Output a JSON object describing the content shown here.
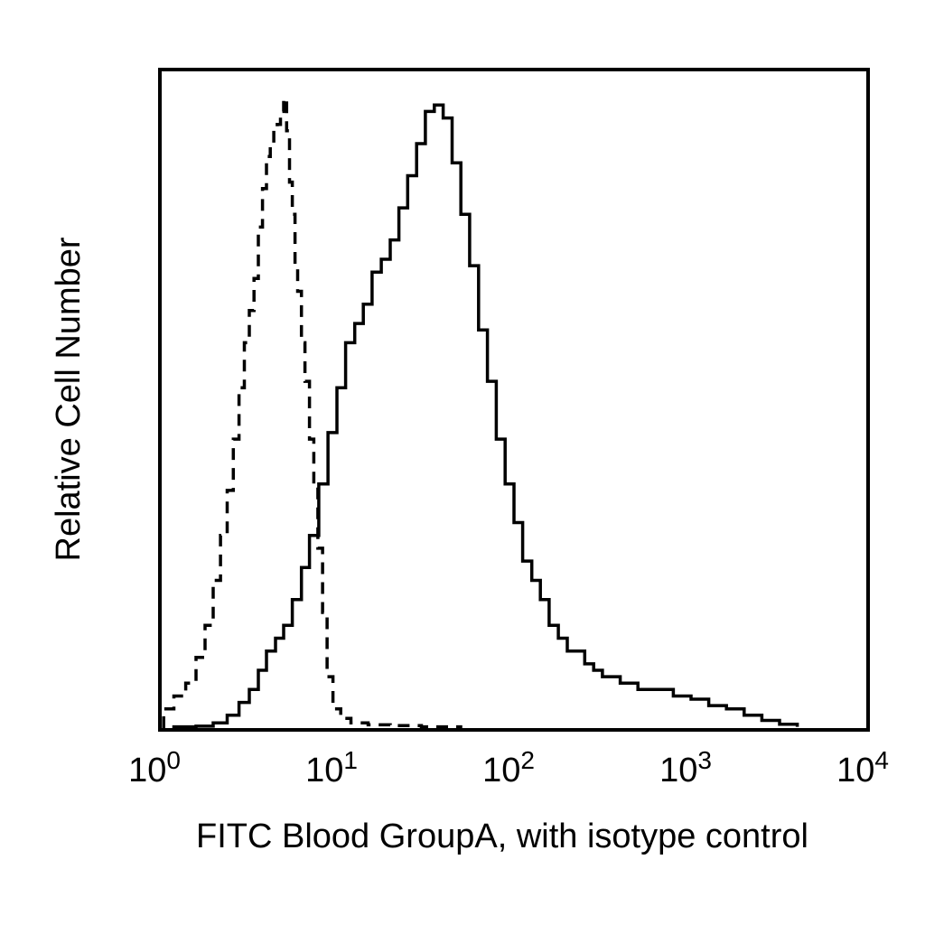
{
  "chart_data": {
    "type": "line",
    "xlabel": "FITC Blood GroupA, with isotype control",
    "ylabel": "Relative Cell Number",
    "x_scale": "log",
    "xlim": [
      1,
      10000
    ],
    "ylim": [
      0,
      100
    ],
    "grid": false,
    "legend": "none",
    "x_ticks": [
      {
        "value": 1,
        "base": "10",
        "exp": "0"
      },
      {
        "value": 10,
        "base": "10",
        "exp": "1"
      },
      {
        "value": 100,
        "base": "10",
        "exp": "2"
      },
      {
        "value": 1000,
        "base": "10",
        "exp": "3"
      },
      {
        "value": 10000,
        "base": "10",
        "exp": "4"
      }
    ],
    "series": [
      {
        "style": "dashed",
        "color": "#000000",
        "x": [
          1.05,
          1.2,
          1.4,
          1.6,
          1.8,
          2.0,
          2.2,
          2.4,
          2.6,
          2.8,
          3.0,
          3.2,
          3.4,
          3.6,
          3.8,
          4.0,
          4.2,
          4.4,
          4.6,
          4.8,
          5.0,
          5.2,
          5.4,
          5.6,
          5.8,
          6.0,
          6.3,
          6.6,
          7.0,
          7.4,
          7.8,
          8.3,
          8.8,
          9.5,
          10.5,
          12.0,
          15.0,
          20.0,
          30.0,
          50.0
        ],
        "y": [
          3,
          5,
          7,
          11,
          16,
          23,
          30,
          37,
          45,
          53,
          60,
          65,
          70,
          78,
          84,
          89,
          91,
          93,
          94,
          96,
          98,
          93,
          85,
          80,
          72,
          68,
          60,
          54,
          45,
          38,
          28,
          18,
          8,
          3,
          1.5,
          0.8,
          0.5,
          0.4,
          0.2,
          0
        ]
      },
      {
        "style": "solid",
        "color": "#000000",
        "x": [
          1.2,
          1.6,
          2.0,
          2.4,
          2.8,
          3.2,
          3.6,
          4.0,
          4.5,
          5.0,
          5.6,
          6.3,
          7.0,
          7.9,
          8.9,
          10.0,
          11.2,
          12.6,
          14.1,
          15.8,
          17.8,
          20.0,
          22.4,
          25.1,
          28.2,
          31.6,
          35.5,
          39.8,
          44.7,
          50.1,
          56.2,
          63.1,
          70.8,
          79.4,
          89.1,
          100,
          112,
          126,
          141,
          158,
          178,
          200,
          224,
          251,
          282,
          316,
          398,
          501,
          631,
          794,
          1000,
          1259,
          1585,
          1995,
          2512,
          3162,
          3981
        ],
        "y": [
          0.2,
          0.3,
          0.8,
          2,
          4,
          6,
          9,
          12,
          14,
          16,
          20,
          25,
          30,
          38,
          46,
          53,
          60,
          63,
          66,
          71,
          73,
          76,
          81,
          86,
          91,
          96,
          97,
          95,
          88,
          80,
          72,
          62,
          54,
          45,
          38,
          32,
          26,
          23,
          20,
          16,
          14,
          12,
          12,
          10,
          9,
          8,
          7,
          6,
          6,
          5,
          4.5,
          3.5,
          3,
          2,
          1.2,
          0.6,
          0.2
        ]
      }
    ]
  }
}
